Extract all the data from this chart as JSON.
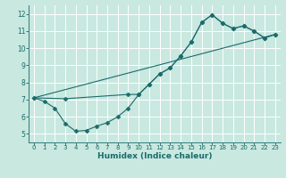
{
  "xlabel": "Humidex (Indice chaleur)",
  "xlim": [
    -0.5,
    23.5
  ],
  "ylim": [
    4.5,
    12.5
  ],
  "xticks": [
    0,
    1,
    2,
    3,
    4,
    5,
    6,
    7,
    8,
    9,
    10,
    11,
    12,
    13,
    14,
    15,
    16,
    17,
    18,
    19,
    20,
    21,
    22,
    23
  ],
  "yticks": [
    5,
    6,
    7,
    8,
    9,
    10,
    11,
    12
  ],
  "bg_color": "#c8e8e0",
  "grid_color": "#ffffff",
  "line_color": "#1a6b6b",
  "line1_x": [
    0,
    1,
    2,
    3,
    4,
    5,
    6,
    7,
    8,
    9,
    10,
    11,
    12,
    13,
    14,
    15,
    16,
    17,
    18,
    19,
    20,
    21,
    22,
    23
  ],
  "line1_y": [
    7.1,
    6.9,
    6.5,
    5.6,
    5.15,
    5.2,
    5.45,
    5.65,
    6.0,
    6.5,
    7.3,
    7.9,
    8.5,
    8.85,
    9.55,
    10.35,
    11.5,
    11.95,
    11.45,
    11.15,
    11.3,
    11.0,
    10.6,
    10.8
  ],
  "line2_x": [
    0,
    3,
    9,
    10,
    11,
    12,
    13,
    14,
    15,
    16,
    17,
    18,
    19,
    20,
    21,
    22,
    23
  ],
  "line2_y": [
    7.1,
    7.05,
    7.3,
    7.3,
    7.9,
    8.5,
    8.85,
    9.55,
    10.35,
    11.5,
    11.95,
    11.45,
    11.15,
    11.3,
    11.0,
    10.6,
    10.8
  ],
  "line3_x": [
    0,
    23
  ],
  "line3_y": [
    7.1,
    10.8
  ]
}
